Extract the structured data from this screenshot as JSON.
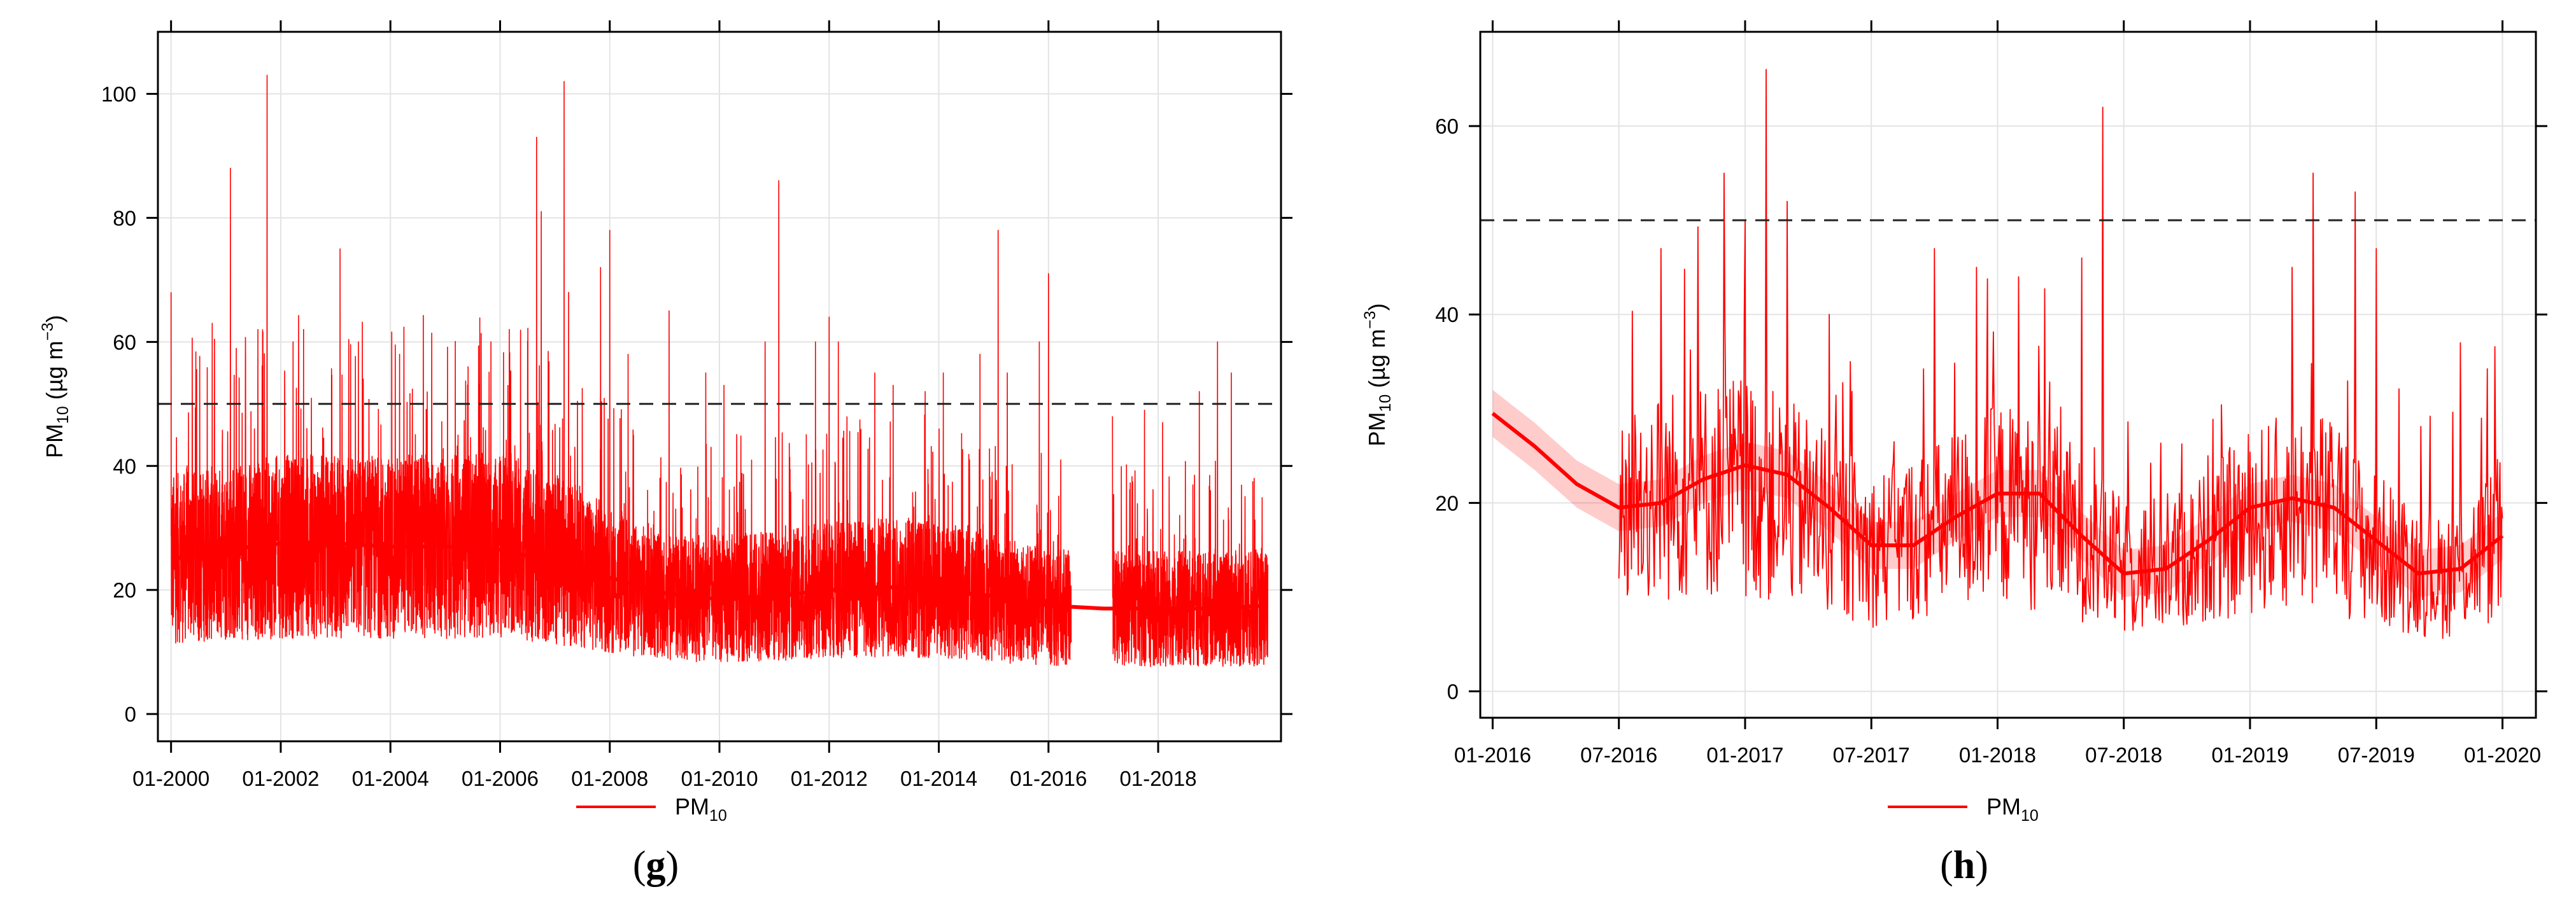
{
  "chart_data": [
    {
      "type": "line",
      "panel_label": "(g)",
      "ylabel": {
        "base": "PM",
        "sub": "10",
        "units_prefix": " (µg m",
        "units_sup": "−3",
        "units_suffix": ")"
      },
      "xlabel": "",
      "ylim": [
        0,
        110
      ],
      "y_ticks": [
        0,
        20,
        40,
        60,
        80,
        100
      ],
      "x_range": [
        "2000-01",
        "2020-01"
      ],
      "x_ticks": [
        "2000-01",
        "2002-01",
        "2004-01",
        "2006-01",
        "2008-01",
        "2010-01",
        "2012-01",
        "2014-01",
        "2016-01",
        "2018-01"
      ],
      "x_tick_labels": [
        "01-2000",
        "01-2002",
        "01-2004",
        "01-2006",
        "01-2008",
        "01-2010",
        "01-2012",
        "01-2014",
        "01-2016",
        "01-2018"
      ],
      "reference_line": 50,
      "grid": true,
      "legend": {
        "label_base": "PM",
        "label_sub": "10",
        "placement": "bottom-center"
      },
      "series": [
        {
          "name": "PM10",
          "color": "#ff0000",
          "kind": "daily",
          "start": "2000-01",
          "end": "2020-01",
          "gap": [
            "2016-06",
            "2017-03"
          ],
          "baseline": [
            [
              "2000-01",
              25
            ],
            [
              "2002-01",
              27
            ],
            [
              "2004-01",
              27
            ],
            [
              "2006-01",
              27
            ],
            [
              "2007-06",
              24
            ],
            [
              "2008-06",
              20
            ],
            [
              "2009-06",
              18.5
            ],
            [
              "2011-01",
              19
            ],
            [
              "2012-01",
              20
            ],
            [
              "2013-06",
              20.5
            ],
            [
              "2014-06",
              19.5
            ],
            [
              "2015-06",
              18
            ],
            [
              "2016-06",
              17
            ],
            [
              "2020-01",
              17
            ]
          ],
          "peaks": [
            [
              "2000-01",
              68
            ],
            [
              "2000-10",
              63
            ],
            [
              "2001-02",
              88
            ],
            [
              "2001-08",
              62
            ],
            [
              "2001-10",
              103
            ],
            [
              "2002-06",
              62
            ],
            [
              "2003-02",
              75
            ],
            [
              "2003-06",
              60
            ],
            [
              "2004-03",
              58
            ],
            [
              "2005-06",
              56
            ],
            [
              "2005-11",
              60
            ],
            [
              "2006-03",
              62
            ],
            [
              "2006-09",
              93
            ],
            [
              "2006-10",
              81
            ],
            [
              "2007-03",
              102
            ],
            [
              "2007-04",
              68
            ],
            [
              "2007-11",
              72
            ],
            [
              "2008-01",
              78
            ],
            [
              "2008-05",
              58
            ],
            [
              "2009-02",
              65
            ],
            [
              "2009-10",
              55
            ],
            [
              "2010-02",
              53
            ],
            [
              "2010-11",
              60
            ],
            [
              "2011-02",
              86
            ],
            [
              "2011-10",
              60
            ],
            [
              "2012-01",
              64
            ],
            [
              "2012-03",
              60
            ],
            [
              "2012-11",
              55
            ],
            [
              "2013-03",
              53
            ],
            [
              "2013-10",
              52
            ],
            [
              "2014-02",
              55
            ],
            [
              "2014-10",
              58
            ],
            [
              "2015-02",
              78
            ],
            [
              "2015-04",
              55
            ],
            [
              "2015-11",
              60
            ],
            [
              "2016-01",
              71
            ],
            [
              "2017-03",
              48
            ],
            [
              "2017-10",
              49
            ],
            [
              "2018-02",
              47
            ],
            [
              "2018-10",
              52
            ],
            [
              "2019-02",
              60
            ],
            [
              "2019-05",
              55
            ],
            [
              "2019-10",
              38
            ]
          ]
        },
        {
          "name": "PM10 trend",
          "color": "#ff0000",
          "kind": "smooth",
          "points": [
            [
              "2000-01",
              25
            ],
            [
              "2001-01",
              26.5
            ],
            [
              "2002-01",
              27.5
            ],
            [
              "2003-01",
              27.5
            ],
            [
              "2004-01",
              27
            ],
            [
              "2005-01",
              27
            ],
            [
              "2006-01",
              26.5
            ],
            [
              "2007-01",
              24.5
            ],
            [
              "2008-01",
              22
            ],
            [
              "2009-01",
              19.5
            ],
            [
              "2010-01",
              18.5
            ],
            [
              "2011-01",
              19
            ],
            [
              "2012-01",
              20
            ],
            [
              "2013-01",
              20.5
            ],
            [
              "2014-01",
              20
            ],
            [
              "2015-01",
              19
            ],
            [
              "2016-01",
              17.5
            ],
            [
              "2017-01",
              17
            ],
            [
              "2018-01",
              17
            ],
            [
              "2019-01",
              17
            ],
            [
              "2020-01",
              17.5
            ]
          ]
        }
      ]
    },
    {
      "type": "line",
      "panel_label": "(h)",
      "ylabel": {
        "base": "PM",
        "sub": "10",
        "units_prefix": " (µg m",
        "units_sup": "−3",
        "units_suffix": ")"
      },
      "xlabel": "",
      "ylim": [
        0,
        70
      ],
      "y_ticks": [
        0,
        20,
        40,
        60
      ],
      "x_range": [
        "2016-01",
        "2020-02"
      ],
      "x_ticks": [
        "2016-01",
        "2016-07",
        "2017-01",
        "2017-07",
        "2018-01",
        "2018-07",
        "2019-01",
        "2019-07",
        "2020-01"
      ],
      "x_tick_labels": [
        "01-2016",
        "07-2016",
        "01-2017",
        "07-2017",
        "01-2018",
        "07-2018",
        "01-2019",
        "07-2019",
        "01-2020"
      ],
      "reference_line": 50,
      "grid": true,
      "legend": {
        "label_base": "PM",
        "label_sub": "10",
        "placement": "bottom-center"
      },
      "series": [
        {
          "name": "PM10",
          "color": "#ff0000",
          "kind": "daily",
          "start": "2016-07",
          "end": "2020-01",
          "gap": [
            "2018-04",
            "2018-04"
          ],
          "baseline": [
            [
              "2016-07",
              20
            ],
            [
              "2016-10",
              21
            ],
            [
              "2017-01",
              22
            ],
            [
              "2017-04",
              19
            ],
            [
              "2017-07",
              15
            ],
            [
              "2017-10",
              17
            ],
            [
              "2018-01",
              20
            ],
            [
              "2018-04",
              18
            ],
            [
              "2018-07",
              13
            ],
            [
              "2018-10",
              14
            ],
            [
              "2019-01",
              18
            ],
            [
              "2019-04",
              20
            ],
            [
              "2019-07",
              15
            ],
            [
              "2019-10",
              12
            ],
            [
              "2020-01",
              16
            ]
          ],
          "peaks": [
            [
              "2016-09",
              47
            ],
            [
              "2016-12",
              55
            ],
            [
              "2017-01",
              50
            ],
            [
              "2017-02",
              66
            ],
            [
              "2017-03",
              52
            ],
            [
              "2017-05",
              40
            ],
            [
              "2017-06",
              35
            ],
            [
              "2017-10",
              47
            ],
            [
              "2017-12",
              45
            ],
            [
              "2018-02",
              44
            ],
            [
              "2018-05",
              46
            ],
            [
              "2018-06",
              62
            ],
            [
              "2018-11",
              25
            ],
            [
              "2019-03",
              45
            ],
            [
              "2019-04",
              55
            ],
            [
              "2019-06",
              53
            ],
            [
              "2019-07",
              47
            ],
            [
              "2019-11",
              37
            ],
            [
              "2019-12",
              29
            ]
          ]
        },
        {
          "name": "PM10 trend",
          "color": "#ff0000",
          "kind": "smooth",
          "band": 2.5,
          "points": [
            [
              "2016-01",
              29.5
            ],
            [
              "2016-03",
              26
            ],
            [
              "2016-05",
              22
            ],
            [
              "2016-07",
              19.5
            ],
            [
              "2016-09",
              20
            ],
            [
              "2016-11",
              22.5
            ],
            [
              "2017-01",
              24
            ],
            [
              "2017-03",
              23
            ],
            [
              "2017-05",
              19.5
            ],
            [
              "2017-07",
              15.5
            ],
            [
              "2017-09",
              15.5
            ],
            [
              "2017-11",
              18.5
            ],
            [
              "2018-01",
              21
            ],
            [
              "2018-03",
              21
            ],
            [
              "2018-05",
              16.5
            ],
            [
              "2018-07",
              12.5
            ],
            [
              "2018-09",
              13
            ],
            [
              "2018-11",
              16
            ],
            [
              "2019-01",
              19.5
            ],
            [
              "2019-03",
              20.5
            ],
            [
              "2019-05",
              19.5
            ],
            [
              "2019-07",
              16
            ],
            [
              "2019-09",
              12.5
            ],
            [
              "2019-11",
              13
            ],
            [
              "2020-01",
              16.5
            ]
          ]
        }
      ]
    }
  ]
}
